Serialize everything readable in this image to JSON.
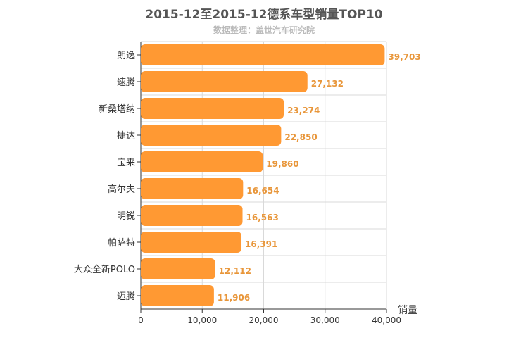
{
  "chart_data": {
    "type": "bar",
    "orientation": "horizontal",
    "title": "2015-12至2015-12德系车型销量TOP10",
    "subtitle": "数据整理：盖世汽车研究院",
    "categories": [
      "朗逸",
      "速腾",
      "新桑塔纳",
      "捷达",
      "宝来",
      "高尔夫",
      "明锐",
      "帕萨特",
      "大众全新POLO",
      "迈腾"
    ],
    "values": [
      39703,
      27132,
      23274,
      22850,
      19860,
      16654,
      16563,
      16391,
      12112,
      11906
    ],
    "value_labels": [
      "39,703",
      "27,132",
      "23,274",
      "22,850",
      "19,860",
      "16,654",
      "16,563",
      "16,391",
      "12,112",
      "11,906"
    ],
    "xlabel": "销量",
    "xlim": [
      0,
      40000
    ],
    "ticks": [
      0,
      10000,
      20000,
      30000,
      40000
    ],
    "tick_labels": [
      "0",
      "10,000",
      "20,000",
      "30,000",
      "40,000"
    ],
    "bar_color": "#ff9933",
    "label_color": "#e8963a",
    "grid": true
  }
}
